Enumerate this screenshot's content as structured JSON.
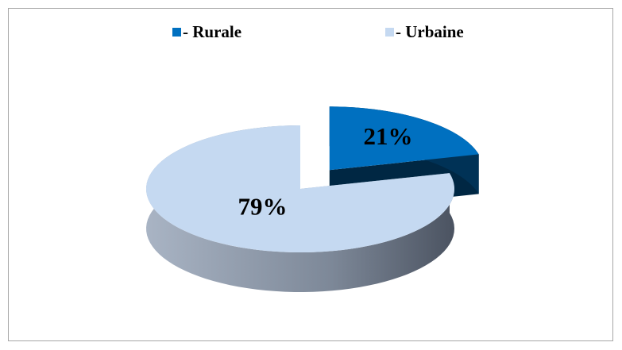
{
  "chart_data": {
    "type": "pie",
    "categories": [
      "- Rurale",
      "- Urbaine"
    ],
    "values": [
      21,
      79
    ],
    "value_labels": [
      "21%",
      "79%"
    ],
    "colors": [
      "#0070c0",
      "#c5d9f1"
    ],
    "exploded": [
      true,
      false
    ],
    "legend": "top"
  }
}
